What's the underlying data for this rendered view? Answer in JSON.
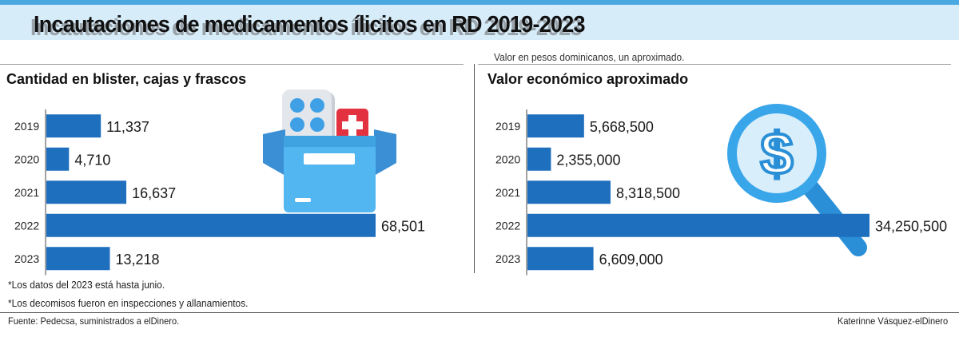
{
  "title": "Incautaciones de medicamentos ílicitos en RD 2019-2023",
  "subtitle_note": "Valor en pesos dominicanos, un aproximado.",
  "footnotes": [
    "*Los datos del 2023 está hasta junio.",
    "*Los decomisos fueron en inspecciones y allanamientos."
  ],
  "source": "Fuente: Pedecsa, suministrados a elDinero.",
  "credit": "Katerinne Vásquez-elDinero",
  "colors": {
    "bar": "#1f6fbf",
    "title_band": "#d6ecf8",
    "accent": "#4aa8e0"
  },
  "chart_data": [
    {
      "type": "bar",
      "orientation": "horizontal",
      "title": "Cantidad en blister, cajas y frascos",
      "categories": [
        "2019",
        "2020",
        "2021",
        "2022",
        "2023"
      ],
      "values": [
        11337,
        4710,
        16637,
        68501,
        13218
      ],
      "value_labels": [
        "11,337",
        "4,710",
        "16,637",
        "68,501",
        "13,218"
      ],
      "xlim": [
        0,
        68501
      ]
    },
    {
      "type": "bar",
      "orientation": "horizontal",
      "title": "Valor económico aproximado",
      "categories": [
        "2019",
        "2020",
        "2021",
        "2022",
        "2023"
      ],
      "values": [
        5668500,
        2355000,
        8318500,
        34250500,
        6609000
      ],
      "value_labels": [
        "5,668,500",
        "2,355,000",
        "8,318,500",
        "34,250,500",
        "6,609,000"
      ],
      "xlim": [
        0,
        34250500
      ]
    }
  ]
}
